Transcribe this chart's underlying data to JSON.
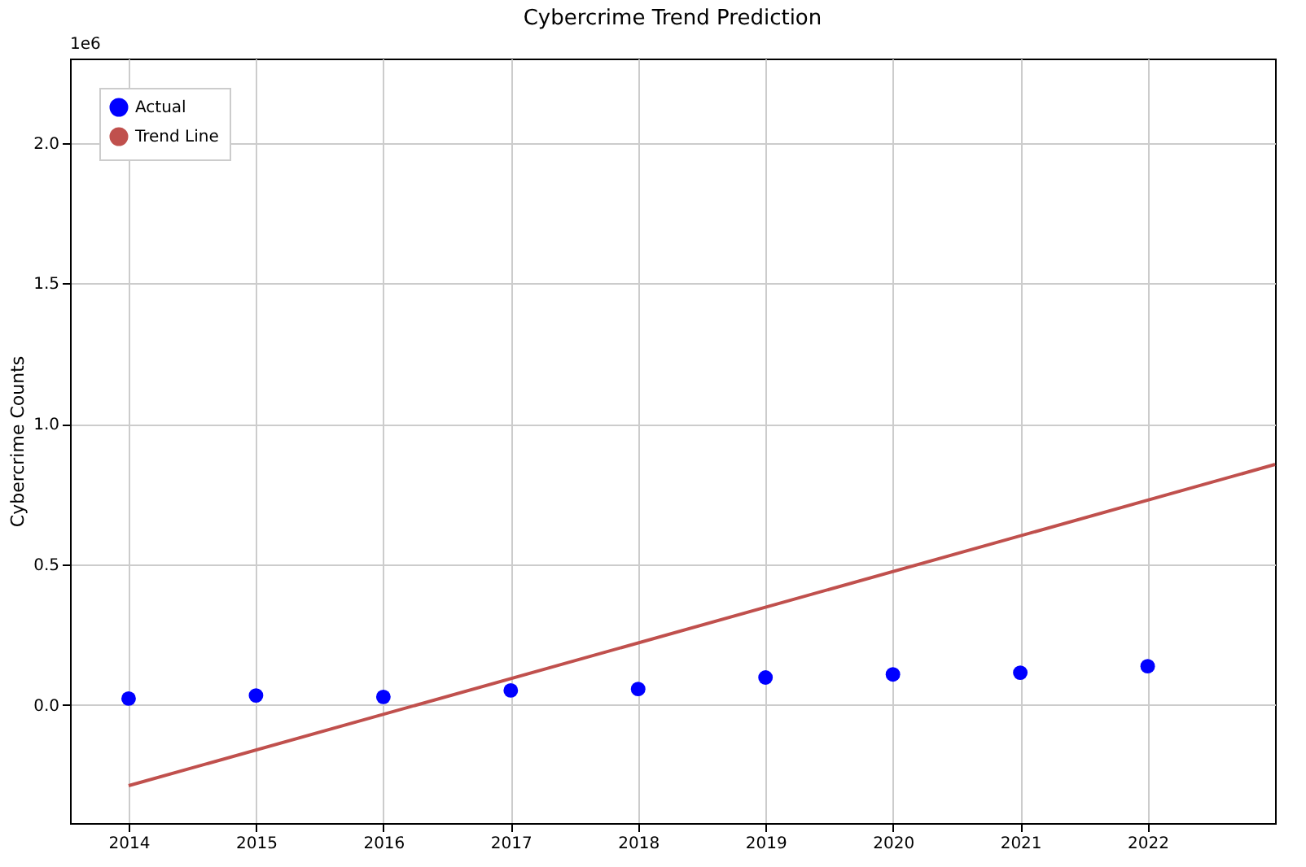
{
  "chart_data": {
    "type": "scatter",
    "title": "Cybercrime Trend Prediction",
    "ylabel": "Cybercrime Counts",
    "annotations": [
      "1e6"
    ],
    "xlim": [
      2013.54,
      2023.0
    ],
    "xticks": [
      2014,
      2015,
      2016,
      2017,
      2018,
      2019,
      2020,
      2021,
      2022
    ],
    "ylim": [
      -0.42,
      2.3
    ],
    "yticks": [
      {
        "value": 0,
        "label": "0.0"
      },
      0.5,
      {
        "value": 1,
        "label": "1.0"
      },
      1.5,
      {
        "value": 2,
        "label": "2.0"
      }
    ],
    "grid": true,
    "legend": "top left",
    "series": [
      {
        "name": "Actual",
        "marker": "circle",
        "color": "#0000ff",
        "x": [
          2014,
          2015,
          2016,
          2017,
          2018,
          2019,
          2020,
          2021,
          2022
        ],
        "values": [
          0.023,
          0.034,
          0.029,
          0.052,
          0.057,
          0.098,
          0.109,
          0.115,
          0.138
        ]
      },
      {
        "name": "Trend Line",
        "type": "line",
        "color": "#c0504d",
        "line_style": "solid",
        "marker": "none",
        "x": [
          2014,
          2023
        ],
        "values": [
          -0.287,
          0.856
        ]
      }
    ]
  }
}
